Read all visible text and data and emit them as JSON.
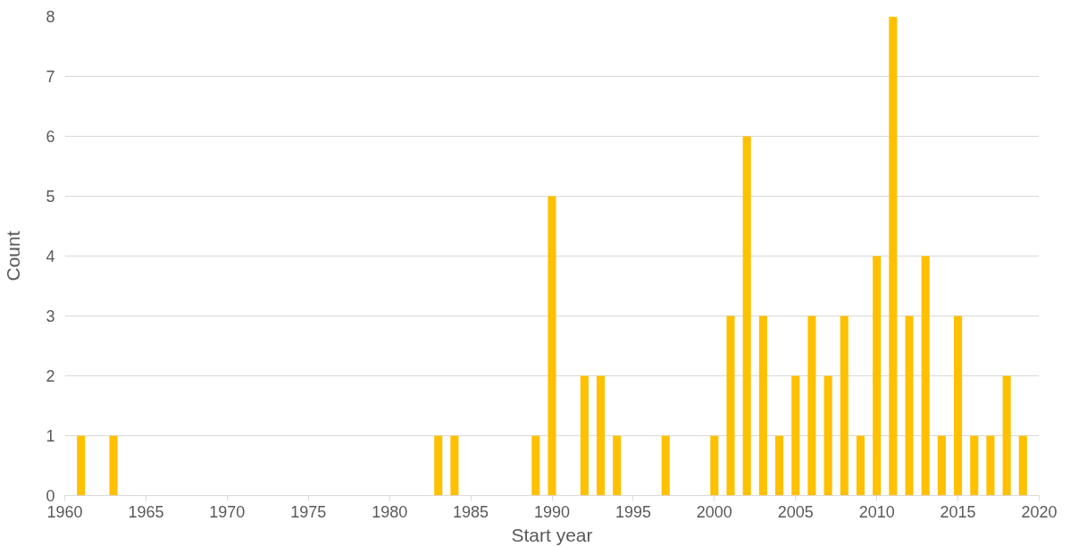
{
  "chart_data": {
    "type": "bar",
    "xlabel": "Start year",
    "ylabel": "Count",
    "x": [
      1961,
      1963,
      1983,
      1984,
      1989,
      1990,
      1992,
      1993,
      1994,
      1997,
      2000,
      2001,
      2002,
      2003,
      2004,
      2005,
      2006,
      2007,
      2008,
      2009,
      2010,
      2011,
      2012,
      2013,
      2014,
      2015,
      2016,
      2017,
      2018,
      2019
    ],
    "values": [
      1,
      1,
      1,
      1,
      1,
      5,
      2,
      2,
      1,
      1,
      1,
      3,
      6,
      3,
      1,
      2,
      3,
      2,
      3,
      1,
      4,
      8,
      3,
      4,
      1,
      3,
      1,
      1,
      2,
      1
    ],
    "color": "#ffc000",
    "xlim": [
      1960,
      2020
    ],
    "xticks": [
      1960,
      1965,
      1970,
      1975,
      1980,
      1985,
      1990,
      1995,
      2000,
      2005,
      2010,
      2015,
      2020
    ],
    "ylim": [
      0,
      8
    ],
    "yticks": [
      0,
      1,
      2,
      3,
      4,
      5,
      6,
      7,
      8
    ],
    "grid": "y"
  }
}
